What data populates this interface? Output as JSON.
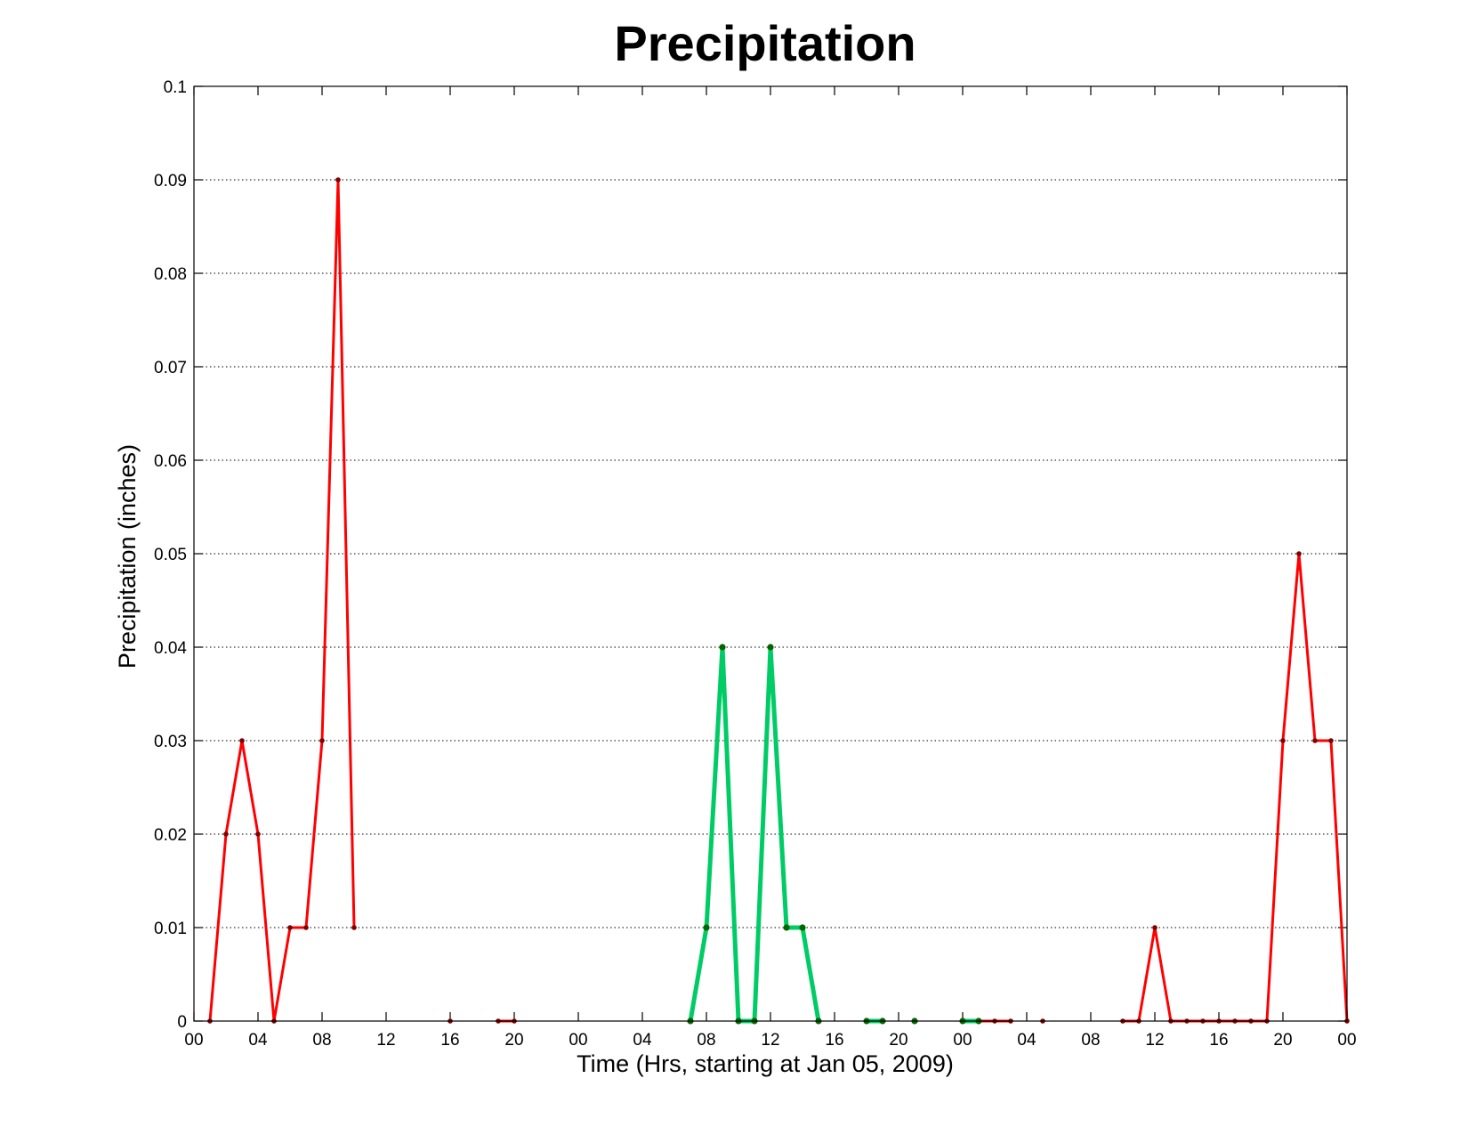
{
  "chart_data": {
    "type": "line",
    "title": "Precipitation",
    "xlabel": "Time (Hrs, starting at Jan 05, 2009)",
    "ylabel": "Precipitation (inches)",
    "xlim": [
      0,
      72
    ],
    "ylim": [
      0,
      0.1
    ],
    "grid": true,
    "x_ticks": [
      0,
      4,
      8,
      12,
      16,
      20,
      24,
      28,
      32,
      36,
      40,
      44,
      48,
      52,
      56,
      60,
      64,
      68,
      72
    ],
    "x_tick_labels": [
      "00",
      "04",
      "08",
      "12",
      "16",
      "20",
      "00",
      "04",
      "08",
      "12",
      "16",
      "20",
      "00",
      "04",
      "08",
      "12",
      "16",
      "20",
      "00"
    ],
    "y_ticks": [
      0,
      0.01,
      0.02,
      0.03,
      0.04,
      0.05,
      0.06,
      0.07,
      0.08,
      0.09,
      0.1
    ],
    "y_tick_labels": [
      "0",
      "0.01",
      "0.02",
      "0.03",
      "0.04",
      "0.05",
      "0.06",
      "0.07",
      "0.08",
      "0.09",
      "0.1"
    ],
    "series": [
      {
        "color": "#ff0000",
        "marker_color": "#800000",
        "line_width": 3,
        "segments": [
          [
            [
              1,
              0
            ],
            [
              2,
              0.02
            ],
            [
              3,
              0.03
            ],
            [
              4,
              0.02
            ],
            [
              5,
              0
            ],
            [
              6,
              0.01
            ],
            [
              7,
              0.01
            ],
            [
              8,
              0.03
            ],
            [
              9,
              0.09
            ],
            [
              10,
              0.01
            ]
          ],
          [
            [
              16,
              0
            ]
          ],
          [
            [
              19,
              0
            ],
            [
              20,
              0
            ]
          ],
          [
            [
              48,
              0
            ],
            [
              49,
              0
            ],
            [
              50,
              0
            ],
            [
              51,
              0
            ]
          ],
          [
            [
              53,
              0
            ]
          ],
          [
            [
              58,
              0
            ],
            [
              59,
              0
            ],
            [
              60,
              0.01
            ],
            [
              61,
              0
            ],
            [
              62,
              0
            ],
            [
              63,
              0
            ],
            [
              64,
              0
            ],
            [
              65,
              0
            ],
            [
              66,
              0
            ],
            [
              67,
              0
            ],
            [
              68,
              0.03
            ],
            [
              69,
              0.05
            ],
            [
              70,
              0.03
            ],
            [
              71,
              0.03
            ],
            [
              72,
              0
            ]
          ]
        ]
      },
      {
        "color": "#00cc66",
        "marker_color": "#006600",
        "line_width": 5,
        "segments": [
          [
            [
              31,
              0
            ],
            [
              32,
              0.01
            ],
            [
              33,
              0.04
            ],
            [
              34,
              0
            ],
            [
              35,
              0
            ],
            [
              36,
              0.04
            ],
            [
              37,
              0.01
            ],
            [
              38,
              0.01
            ],
            [
              39,
              0
            ]
          ],
          [
            [
              42,
              0
            ],
            [
              43,
              0
            ]
          ],
          [
            [
              45,
              0
            ]
          ],
          [
            [
              48,
              0
            ],
            [
              49,
              0
            ]
          ]
        ]
      }
    ]
  }
}
